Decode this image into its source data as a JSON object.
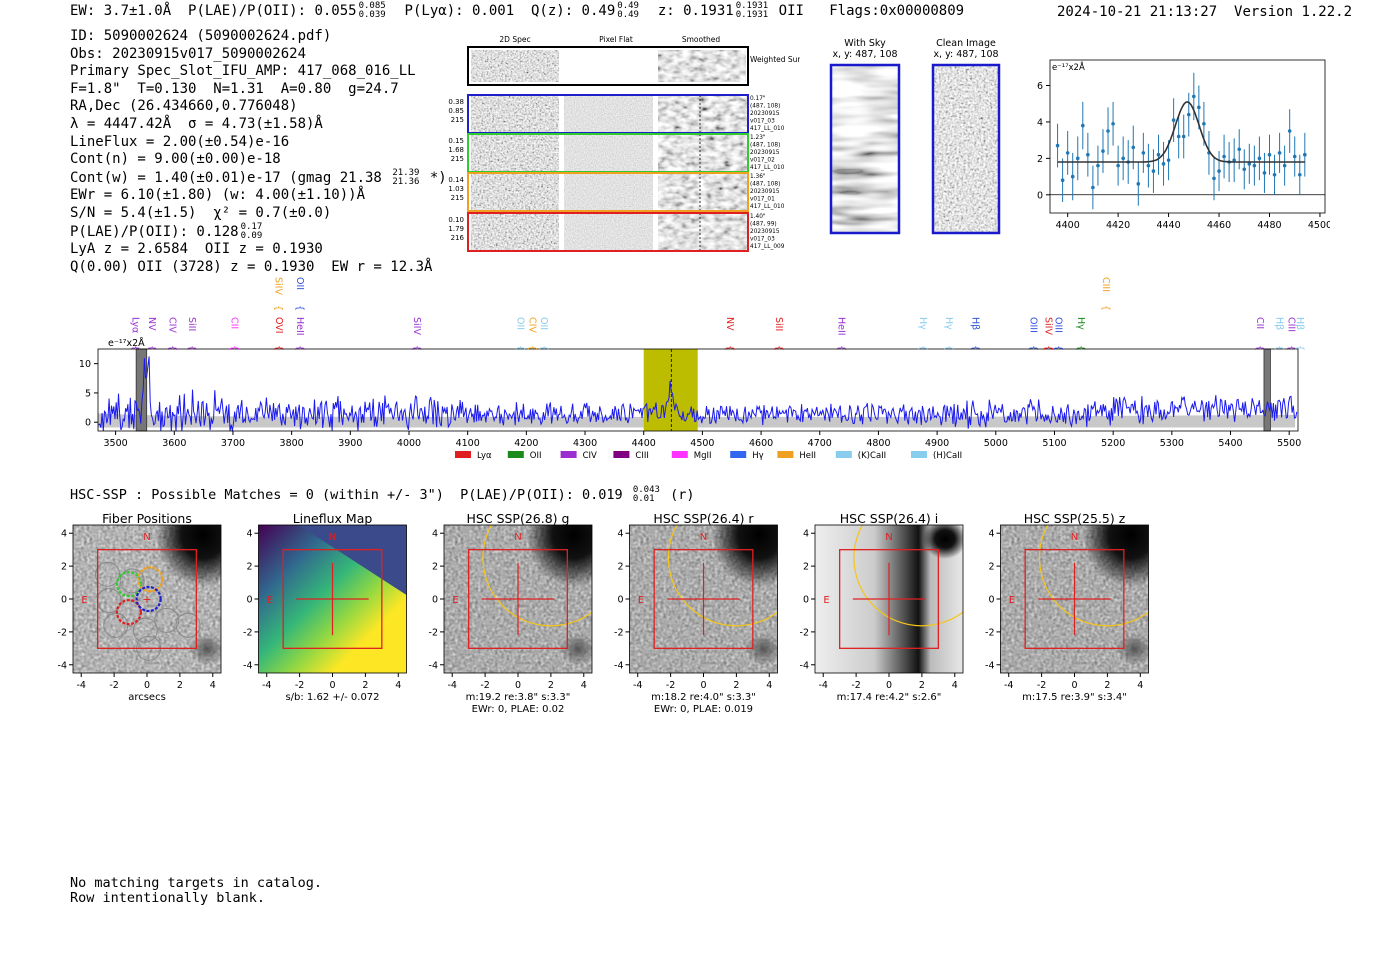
{
  "header": {
    "ew": "EW: 3.7±1.0Å",
    "plae_label": "P(LAE)/P(OII): 0.055",
    "plae_hi": "0.085",
    "plae_lo": "0.039",
    "plya": "P(Lyα): 0.001",
    "qz_label": "Q(z): 0.49",
    "qz_hi": "0.49",
    "qz_lo": "0.49",
    "z_label": "z: 0.1931",
    "z_hi": "0.1931",
    "z_lo": "0.1931",
    "z_line": "OII",
    "flags": "Flags:0x00000809",
    "datetime": "2024-10-21 21:13:27",
    "version": "Version 1.22.2"
  },
  "info": {
    "id": "ID: 5090002624 (5090002624.pdf)",
    "obs": "Obs: 20230915v017_5090002624",
    "primary": "Primary Spec_Slot_IFU_AMP: 417_068_016_LL",
    "params": "F=1.8\"  T=0.130  N=1.31  A=0.80  g=24.7",
    "radec": "RA,Dec (26.434660,0.776048)",
    "lambda": "λ = 4447.42Å  σ = 4.73(±1.58)Å",
    "lineflux": "LineFlux = 2.00(±0.54)e-16",
    "contn": "Cont(n) = 9.00(±0.00)e-18",
    "contw": "Cont(w) = 1.40(±0.01)e-17 (gmag 21.38",
    "contw_hi": "21.39",
    "contw_lo": "21.36",
    "contw_tail": "*)",
    "ewr": "EWr = 6.10(±1.80) (w: 4.00(±1.10))Å",
    "sn": "S/N = 5.4(±1.5)  χ² = 0.7(±0.0)",
    "plae": "P(LAE)/P(OII): 0.128",
    "plae_hi": "0.17",
    "plae_lo": "0.09",
    "lya": "LyA z = 2.6584  OII z = 0.1930",
    "q": "Q(0.00) OII (3728) z = 0.1930  EW r = 12.3Å"
  },
  "spec2d": {
    "col_labels": [
      "2D Spec",
      "Pixel Flat",
      "Smoothed"
    ],
    "weighted_label": "Weighted Sum",
    "rows": [
      {
        "left": [
          "0.38",
          "0.85",
          "215"
        ],
        "right": [
          "0.17\"",
          "(487, 108)",
          "20230915",
          "v017_03",
          "417_LL_010"
        ],
        "color": "#1f1fcc"
      },
      {
        "left": [
          "0.15",
          "1.68",
          "215"
        ],
        "right": [
          "1.23\"",
          "(487, 108)",
          "20230915",
          "v017_02",
          "417_LL_010"
        ],
        "color": "#2ecc2e"
      },
      {
        "left": [
          "0.14",
          "1.03",
          "215"
        ],
        "right": [
          "1.36\"",
          "(487, 108)",
          "20230915",
          "v017_01",
          "417_LL_010"
        ],
        "color": "#f0a020"
      },
      {
        "left": [
          "0.10",
          "1.79",
          "216"
        ],
        "right": [
          "1.40\"",
          "(487, 99)",
          "20230915",
          "v017_03",
          "417_LL_009"
        ],
        "color": "#e02020"
      }
    ]
  },
  "stamps": {
    "with_sky": {
      "title": "With Sky",
      "coords": "x, y: 487, 108"
    },
    "clean": {
      "title": "Clean Image",
      "coords": "x, y: 487, 108"
    }
  },
  "fit_chart": {
    "type": "scatter",
    "unit_label": "e⁻¹⁷x2Å",
    "xlim": [
      4393,
      4502
    ],
    "ylim": [
      -1,
      7.4
    ],
    "xticks": [
      4400,
      4420,
      4440,
      4460,
      4480,
      4500
    ],
    "yticks": [
      0,
      2,
      4,
      6
    ],
    "x": [
      4396,
      4398,
      4400,
      4402,
      4404,
      4406,
      4408,
      4410,
      4412,
      4414,
      4416,
      4418,
      4420,
      4422,
      4424,
      4426,
      4428,
      4430,
      4432,
      4434,
      4436,
      4438,
      4440,
      4442,
      4444,
      4446,
      4448,
      4450,
      4452,
      4454,
      4456,
      4458,
      4460,
      4462,
      4464,
      4466,
      4468,
      4470,
      4472,
      4474,
      4476,
      4478,
      4480,
      4482,
      4484,
      4486,
      4488,
      4490,
      4492,
      4494
    ],
    "y": [
      2.7,
      0.8,
      2.3,
      1.0,
      2.0,
      3.8,
      2.2,
      0.4,
      1.6,
      2.4,
      3.5,
      3.9,
      1.6,
      2.0,
      1.8,
      2.6,
      0.6,
      2.3,
      1.6,
      1.3,
      2.2,
      1.7,
      1.9,
      4.1,
      3.2,
      3.2,
      4.4,
      5.4,
      4.8,
      3.9,
      2.3,
      0.9,
      1.3,
      2.1,
      1.8,
      1.9,
      2.5,
      1.4,
      1.7,
      1.6,
      2.0,
      1.2,
      2.2,
      1.1,
      2.3,
      1.6,
      3.5,
      2.1,
      1.1,
      2.2
    ],
    "err": [
      1.2,
      1.2,
      1.2,
      1.3,
      1.2,
      1.3,
      1.2,
      1.2,
      1.1,
      1.2,
      1.3,
      1.2,
      1.1,
      1.2,
      1.2,
      1.2,
      1.2,
      1.1,
      1.2,
      1.2,
      1.1,
      1.2,
      1.1,
      1.2,
      1.2,
      1.2,
      1.2,
      1.3,
      1.2,
      1.2,
      1.2,
      1.2,
      1.1,
      1.2,
      1.1,
      1.2,
      1.1,
      1.1,
      1.1,
      1.1,
      1.2,
      1.1,
      1.1,
      1.1,
      1.1,
      1.1,
      1.2,
      1.1,
      1.1,
      1.2
    ],
    "model": {
      "continuum": 1.8,
      "amplitude": 3.3,
      "center": 4447.4,
      "sigma": 4.73
    }
  },
  "spectrum": {
    "type": "line",
    "unit_label": "e⁻¹⁷x2Å",
    "xlim": [
      3470,
      5515
    ],
    "ylim": [
      -1.5,
      12.5
    ],
    "xticks": [
      3500,
      3600,
      3700,
      3800,
      3900,
      4000,
      4100,
      4200,
      4300,
      4400,
      4500,
      4600,
      4700,
      4800,
      4900,
      5000,
      5100,
      5200,
      5300,
      5400,
      5500
    ],
    "yticks": [
      0,
      5,
      10
    ],
    "highlight": [
      4400,
      4492
    ],
    "line_center": 4447,
    "gray_bands": [
      [
        3535,
        3553
      ],
      [
        5457,
        5468
      ]
    ],
    "line_labels": [
      {
        "label": "Lyα",
        "x": 3524,
        "color": "#9b30d0",
        "row": 2
      },
      {
        "label": "NV",
        "x": 3552,
        "color": "#9b30d0",
        "row": 2
      },
      {
        "label": "CIV",
        "x": 3587,
        "color": "#9b30d0",
        "row": 2
      },
      {
        "label": "SiII",
        "x": 3620,
        "color": "#9b30d0",
        "row": 2
      },
      {
        "label": "CII",
        "x": 3692,
        "color": "#ff33ff",
        "row": 2
      },
      {
        "label": "SiIV",
        "x": 3767,
        "color": "#f0a020",
        "row": 1
      },
      {
        "label": "OVI",
        "x": 3768,
        "color": "#e02020",
        "row": 2
      },
      {
        "label": "OII",
        "x": 3804,
        "color": "#3355dd",
        "row": 1
      },
      {
        "label": "HeII",
        "x": 3804,
        "color": "#9b30d0",
        "row": 2
      },
      {
        "label": "SiIV",
        "x": 4003,
        "color": "#9b30d0",
        "row": 2
      },
      {
        "label": "OII",
        "x": 4180,
        "color": "#88ccee",
        "row": 2
      },
      {
        "label": "CIV",
        "x": 4200,
        "color": "#f0a020",
        "row": 2
      },
      {
        "label": "OII",
        "x": 4220,
        "color": "#88ccee",
        "row": 2
      },
      {
        "label": "NV",
        "x": 4537,
        "color": "#e02020",
        "row": 2
      },
      {
        "label": "SiII",
        "x": 4620,
        "color": "#e02020",
        "row": 2
      },
      {
        "label": "HeII",
        "x": 4727,
        "color": "#9b30d0",
        "row": 2
      },
      {
        "label": "Hγ",
        "x": 4866,
        "color": "#88ccee",
        "row": 2
      },
      {
        "label": "Hγ",
        "x": 4910,
        "color": "#88ccee",
        "row": 2
      },
      {
        "label": "Hβ",
        "x": 4955,
        "color": "#3355dd",
        "row": 2
      },
      {
        "label": "OIII",
        "x": 5054,
        "color": "#3355dd",
        "row": 2
      },
      {
        "label": "SiIV",
        "x": 5080,
        "color": "#e02020",
        "row": 2
      },
      {
        "label": "OIII",
        "x": 5097,
        "color": "#3355dd",
        "row": 2
      },
      {
        "label": "Hγ",
        "x": 5135,
        "color": "#1a8a1a",
        "row": 2
      },
      {
        "label": "CIII",
        "x": 5178,
        "color": "#f0a020",
        "row": 1
      },
      {
        "label": "CII",
        "x": 5440,
        "color": "#9b30d0",
        "row": 2
      },
      {
        "label": "Hβ",
        "x": 5473,
        "color": "#88ccee",
        "row": 2
      },
      {
        "label": "CIII",
        "x": 5494,
        "color": "#9b30d0",
        "row": 2
      },
      {
        "label": "Hβ",
        "x": 5508,
        "color": "#88ccee",
        "row": 2
      }
    ],
    "legend": [
      {
        "label": "Lyα",
        "color": "#e02020"
      },
      {
        "label": "OII",
        "color": "#1a8a1a"
      },
      {
        "label": "CIV",
        "color": "#9b30d0"
      },
      {
        "label": "CIII",
        "color": "#800080"
      },
      {
        "label": "MgII",
        "color": "#ff33ff"
      },
      {
        "label": "Hγ",
        "color": "#3366ee"
      },
      {
        "label": "HeII",
        "color": "#f0a020"
      },
      {
        "label": "(K)CaII",
        "color": "#88ccee"
      },
      {
        "label": "(H)CaII",
        "color": "#88ccee"
      }
    ]
  },
  "hsc": {
    "header": "HSC-SSP : Possible Matches = 0 (within +/- 3\")  P(LAE)/P(OII): 0.019",
    "header_hi": "0.043",
    "header_lo": "0.01",
    "header_tail": "(r)",
    "ticks": [
      -4,
      -2,
      0,
      2,
      4
    ],
    "north": "N",
    "east": "E",
    "panels": [
      {
        "title": "Fiber Positions",
        "caption1": "arcsecs",
        "caption2": ""
      },
      {
        "title": "Lineflux Map",
        "caption1": "s/b: 1.62 +/- 0.072",
        "caption2": ""
      },
      {
        "title": "HSC SSP(26.8) g",
        "caption1": "m:19.2  re:3.8\"  s:3.3\"",
        "caption2": "EWr: 0, PLAE: 0.02"
      },
      {
        "title": "HSC SSP(26.4) r",
        "caption1": "m:18.2  re:4.0\"  s:3.3\"",
        "caption2": "EWr: 0, PLAE: 0.019"
      },
      {
        "title": "HSC SSP(26.4) i",
        "caption1": "m:17.4  re:4.2\"  s:2.6\"",
        "caption2": ""
      },
      {
        "title": "HSC SSP(25.5) z",
        "caption1": "m:17.5  re:3.9\"  s:3.4\"",
        "caption2": ""
      }
    ]
  },
  "footer": {
    "line1": "No matching targets in catalog.",
    "line2": "Row intentionally blank."
  },
  "colors": {
    "blue": "#1a1aee",
    "olive": "#bcbd00",
    "red": "#e02020",
    "gold": "#f5c518"
  }
}
